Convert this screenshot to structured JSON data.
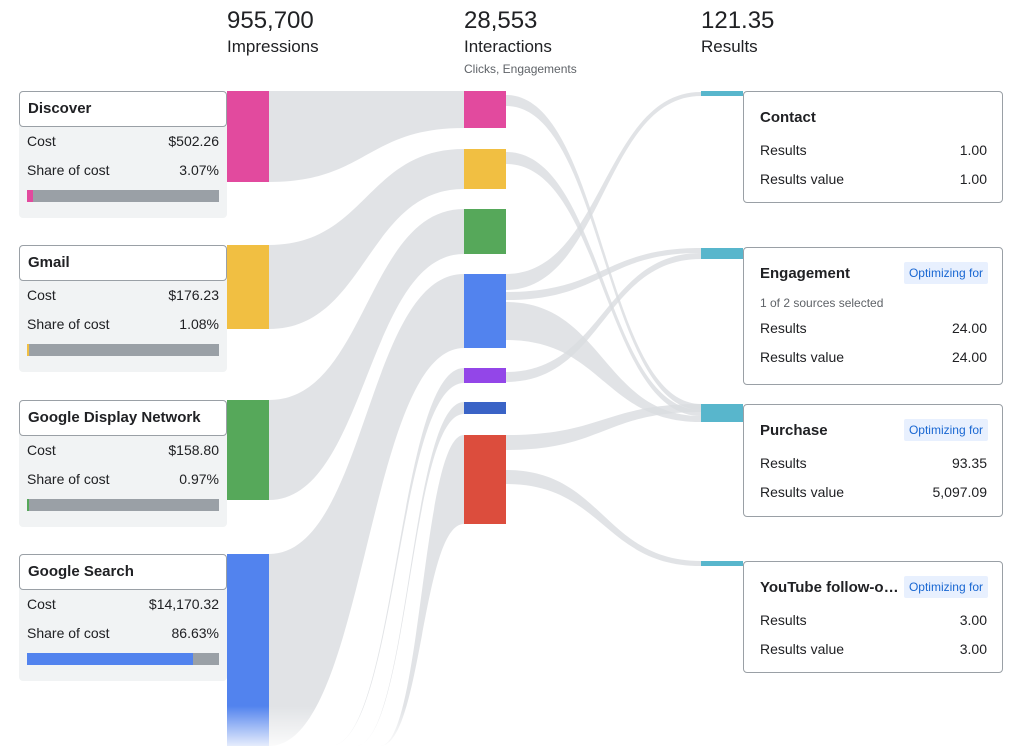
{
  "stages": {
    "impressions": {
      "value": "955,700",
      "label": "Impressions"
    },
    "interactions": {
      "value": "28,553",
      "label": "Interactions",
      "sublabel": "Clicks, Engagements"
    },
    "results": {
      "value": "121.35",
      "label": "Results"
    }
  },
  "sources": [
    {
      "name": "Discover",
      "cost_label": "Cost",
      "cost": "$502.26",
      "share_label": "Share of cost",
      "share": "3.07%",
      "share_fraction": 0.0307,
      "color": "#e24a9e"
    },
    {
      "name": "Gmail",
      "cost_label": "Cost",
      "cost": "$176.23",
      "share_label": "Share of cost",
      "share": "1.08%",
      "share_fraction": 0.0108,
      "color": "#f1bf42"
    },
    {
      "name": "Google Display Network",
      "cost_label": "Cost",
      "cost": "$158.80",
      "share_label": "Share of cost",
      "share": "0.97%",
      "share_fraction": 0.0097,
      "color": "#56a85a"
    },
    {
      "name": "Google Search",
      "cost_label": "Cost",
      "cost": "$14,170.32",
      "share_label": "Share of cost",
      "share": "86.63%",
      "share_fraction": 0.8663,
      "color": "#5283ee"
    }
  ],
  "interaction_colors": [
    "#e24a9e",
    "#f1bf42",
    "#56a85a",
    "#5283ee",
    "#9346e8",
    "#3a63c6",
    "#dc4d3d"
  ],
  "result_color": "#58b6cc",
  "results": [
    {
      "name": "Contact",
      "badge": "",
      "subtitle": "",
      "rows": [
        {
          "label": "Results",
          "value": "1.00"
        },
        {
          "label": "Results value",
          "value": "1.00"
        }
      ]
    },
    {
      "name": "Engagement",
      "badge": "Optimizing for",
      "subtitle": "1 of 2 sources selected",
      "rows": [
        {
          "label": "Results",
          "value": "24.00"
        },
        {
          "label": "Results value",
          "value": "24.00"
        }
      ]
    },
    {
      "name": "Purchase",
      "badge": "Optimizing for",
      "subtitle": "",
      "rows": [
        {
          "label": "Results",
          "value": "93.35"
        },
        {
          "label": "Results value",
          "value": "5,097.09"
        }
      ]
    },
    {
      "name": "YouTube follow-on...",
      "badge": "Optimizing for",
      "subtitle": "",
      "rows": [
        {
          "label": "Results",
          "value": "3.00"
        },
        {
          "label": "Results value",
          "value": "3.00"
        }
      ]
    }
  ]
}
